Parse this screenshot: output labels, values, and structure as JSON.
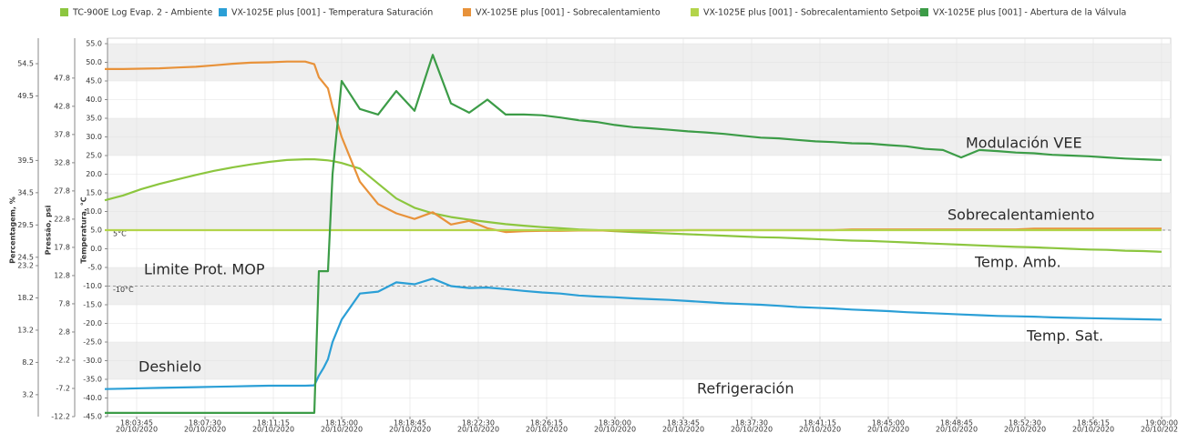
{
  "chart_data": {
    "type": "line",
    "y_axis_labels": [
      "Percentagem, %",
      "Pressão, psi",
      "Temperatura, °C"
    ],
    "x": [
      "18:02:00",
      "18:03:00",
      "18:04:00",
      "18:05:00",
      "18:06:00",
      "18:07:00",
      "18:08:00",
      "18:09:00",
      "18:10:00",
      "18:11:00",
      "18:12:00",
      "18:13:00",
      "18:13:30",
      "18:13:45",
      "18:14:00",
      "18:14:15",
      "18:14:30",
      "18:15:00",
      "18:16:00",
      "18:17:00",
      "18:18:00",
      "18:19:00",
      "18:20:00",
      "18:21:00",
      "18:22:00",
      "18:23:00",
      "18:24:00",
      "18:25:00",
      "18:26:00",
      "18:27:00",
      "18:28:00",
      "18:29:00",
      "18:30:00",
      "18:31:00",
      "18:32:00",
      "18:33:00",
      "18:34:00",
      "18:35:00",
      "18:36:00",
      "18:37:00",
      "18:38:00",
      "18:39:00",
      "18:40:00",
      "18:41:00",
      "18:42:00",
      "18:43:00",
      "18:44:00",
      "18:45:00",
      "18:46:00",
      "18:47:00",
      "18:48:00",
      "18:49:00",
      "18:50:00",
      "18:51:00",
      "18:52:00",
      "18:53:00",
      "18:54:00",
      "18:55:00",
      "18:56:00",
      "18:57:00",
      "18:58:00",
      "18:59:00",
      "19:00:00"
    ],
    "series": [
      {
        "name": "TC-900E Log Evap. 2 - Ambiente",
        "color": "#8cc63f",
        "values": [
          13,
          14.3,
          16,
          17.4,
          18.6,
          19.8,
          20.9,
          21.8,
          22.6,
          23.3,
          23.8,
          24,
          24,
          23.9,
          23.8,
          23.7,
          23.5,
          23,
          21.5,
          17.5,
          13.5,
          11,
          9.5,
          8.5,
          7.8,
          7.2,
          6.6,
          6.2,
          5.8,
          5.5,
          5.2,
          5,
          4.7,
          4.5,
          4.3,
          4.1,
          3.9,
          3.7,
          3.5,
          3.3,
          3.1,
          3,
          2.8,
          2.6,
          2.4,
          2.2,
          2.1,
          1.9,
          1.7,
          1.5,
          1.3,
          1.1,
          0.9,
          0.7,
          0.5,
          0.4,
          0.2,
          0,
          -0.2,
          -0.3,
          -0.5,
          -0.6,
          -0.8
        ]
      },
      {
        "name": "VX-1025E plus [001] - Temperatura Saturación",
        "color": "#2b9fd6",
        "values": [
          -37.6,
          -37.5,
          -37.4,
          -37.3,
          -37.2,
          -37.1,
          -37,
          -36.9,
          -36.8,
          -36.7,
          -36.7,
          -36.7,
          -36.6,
          -34,
          -32,
          -29.6,
          -25,
          -19,
          -12,
          -11.5,
          -9,
          -9.5,
          -8,
          -10,
          -10.5,
          -10.4,
          -10.8,
          -11.3,
          -11.7,
          -12,
          -12.5,
          -12.8,
          -13,
          -13.3,
          -13.5,
          -13.7,
          -14,
          -14.3,
          -14.6,
          -14.8,
          -15,
          -15.3,
          -15.6,
          -15.8,
          -16,
          -16.3,
          -16.5,
          -16.7,
          -17,
          -17.2,
          -17.4,
          -17.6,
          -17.8,
          -18,
          -18.1,
          -18.2,
          -18.4,
          -18.5,
          -18.6,
          -18.7,
          -18.8,
          -18.9,
          -19
        ]
      },
      {
        "name": "VX-1025E plus [001] - Sobrecalentamiento",
        "color": "#e8923a",
        "values": [
          48.2,
          48.2,
          48.3,
          48.4,
          48.6,
          48.8,
          49.2,
          49.6,
          49.9,
          50,
          50.2,
          50.2,
          49.5,
          46,
          44.5,
          43,
          38,
          30,
          18,
          12,
          9.5,
          8,
          9.8,
          6.5,
          7.5,
          5.5,
          4.5,
          4.7,
          4.8,
          4.8,
          4.9,
          4.9,
          4.9,
          4.9,
          4.9,
          4.9,
          5,
          5,
          5,
          5,
          5,
          5,
          5,
          5,
          5,
          5.2,
          5.2,
          5.2,
          5.2,
          5.2,
          5.2,
          5.2,
          5.2,
          5.2,
          5.2,
          5.4,
          5.4,
          5.4,
          5.4,
          5.4,
          5.4,
          5.4,
          5.4
        ]
      },
      {
        "name": "VX-1025E plus [001] - Sobrecalentamiento Setpoint",
        "color": "#b3d44a",
        "values": [
          5,
          5,
          5,
          5,
          5,
          5,
          5,
          5,
          5,
          5,
          5,
          5,
          5,
          5,
          5,
          5,
          5,
          5,
          5,
          5,
          5,
          5,
          5,
          5,
          5,
          5,
          5,
          5,
          5,
          5,
          5,
          5,
          5,
          5,
          5,
          5,
          5,
          5,
          5,
          5,
          5,
          5,
          5,
          5,
          5,
          5,
          5,
          5,
          5,
          5,
          5,
          5,
          5,
          5,
          5,
          5,
          5,
          5,
          5,
          5,
          5,
          5,
          5
        ]
      },
      {
        "name": "VX-1025E plus [001] - Abertura de la Válvula",
        "color": "#3c9c47",
        "values": [
          -44,
          -44,
          -44,
          -44,
          -44,
          -44,
          -44,
          -44,
          -44,
          -44,
          -44,
          -44,
          -44,
          -6,
          -6,
          -6,
          20,
          45,
          37.5,
          36,
          42.3,
          37,
          52,
          39,
          36.5,
          40,
          36,
          36,
          35.8,
          35.2,
          34.5,
          34,
          33.2,
          32.6,
          32.3,
          31.9,
          31.5,
          31.2,
          30.8,
          30.3,
          29.8,
          29.6,
          29.2,
          28.8,
          28.6,
          28.3,
          28.2,
          27.8,
          27.5,
          26.8,
          26.5,
          24.5,
          26.5,
          26.2,
          25.8,
          25.6,
          25.2,
          25,
          24.8,
          24.5,
          24.2,
          24,
          23.8
        ]
      }
    ],
    "xlim": [
      "18:02:09",
      "19:00:30"
    ],
    "xticks": [
      "18:03:45",
      "18:07:30",
      "18:11:15",
      "18:15:00",
      "18:18:45",
      "18:22:30",
      "18:26:15",
      "18:30:00",
      "18:33:45",
      "18:37:30",
      "18:41:15",
      "18:45:00",
      "18:48:45",
      "18:52:30",
      "18:56:15",
      "19:00:00"
    ],
    "xtick_date": "20/10/2020",
    "ylim": [
      -45,
      55
    ],
    "yticks": [
      {
        "value": 55,
        "label": "55.0"
      },
      {
        "value": 50,
        "label": "50.0"
      },
      {
        "value": 45,
        "label": "45.0"
      },
      {
        "value": 40,
        "label": "40.0"
      },
      {
        "value": 35,
        "label": "35.0"
      },
      {
        "value": 30,
        "label": "30.0"
      },
      {
        "value": 25,
        "label": "25.0"
      },
      {
        "value": 20,
        "label": "20.0"
      },
      {
        "value": 15,
        "label": "15.0"
      },
      {
        "value": 10,
        "label": "10.0"
      },
      {
        "value": 5,
        "label": "5.0"
      },
      {
        "value": 0,
        "label": "0.0"
      },
      {
        "value": -5,
        "label": "-5.0"
      },
      {
        "value": -10,
        "label": "-10.0"
      },
      {
        "value": -15,
        "label": "-15.0"
      },
      {
        "value": -20,
        "label": "-20.0"
      },
      {
        "value": -25,
        "label": "-25.0"
      },
      {
        "value": -30,
        "label": "-30.0"
      },
      {
        "value": -35,
        "label": "-35.0"
      },
      {
        "value": -40,
        "label": "-40.0"
      },
      {
        "value": -45,
        "label": "-45.0"
      }
    ],
    "y2lim": [
      -12.2,
      53.9
    ],
    "y2ticks": [
      47.8,
      42.8,
      37.8,
      32.8,
      27.8,
      22.8,
      17.8,
      12.8,
      7.8,
      2.8,
      -2.2,
      -7.2,
      -12.2
    ],
    "y3lim": [
      -0.2,
      57.6
    ],
    "y3ticks": [
      54.5,
      49.5,
      39.5,
      34.5,
      29.5,
      24.5,
      23.2,
      18.2,
      13.2,
      8.2,
      3.2
    ],
    "reference_lines": [
      {
        "value": 5,
        "label": "5°C"
      },
      {
        "value": -10,
        "label": "-10°C"
      }
    ],
    "annotations": [
      "Limite Prot. MOP",
      "Deshielo",
      "Refrigeración",
      "Modulación VEE",
      "Sobrecalentamiento",
      "Temp. Amb.",
      "Temp. Sat."
    ],
    "grid": true
  }
}
